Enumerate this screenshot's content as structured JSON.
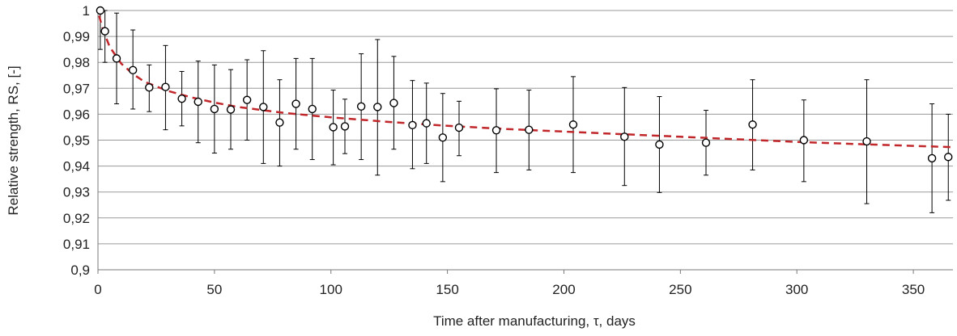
{
  "chart_data": {
    "type": "scatter",
    "title": "",
    "xlabel": "Time after manufacturing, τ, days",
    "ylabel": "Relative strength, RS, [-]",
    "xlim": [
      0,
      367
    ],
    "ylim": [
      0.9,
      1.0
    ],
    "x_ticks": [
      0,
      50,
      100,
      150,
      200,
      250,
      300,
      350
    ],
    "x_tick_labels": [
      "0",
      "50",
      "100",
      "150",
      "200",
      "250",
      "300",
      "350"
    ],
    "y_ticks": [
      0.9,
      0.91,
      0.92,
      0.93,
      0.94,
      0.95,
      0.96,
      0.97,
      0.98,
      0.99,
      1.0
    ],
    "y_tick_labels": [
      "0,9",
      "0,91",
      "0,92",
      "0,93",
      "0,94",
      "0,95",
      "0,96",
      "0,97",
      "0,98",
      "0,99",
      "1"
    ],
    "grid": "horizontal",
    "marker_color": "#000000",
    "errorbar_color": "#000000",
    "trend_color": "#c0262a",
    "series": [
      {
        "x": [
          1,
          3,
          8,
          15,
          22,
          29,
          36,
          43,
          50,
          57,
          64,
          71,
          78,
          85,
          92,
          101,
          106,
          113,
          120,
          127,
          135,
          141,
          148,
          155,
          171,
          185,
          204,
          226,
          241,
          261,
          281,
          303,
          330,
          358,
          365
        ],
        "y": [
          1.0,
          0.992,
          0.9815,
          0.977,
          0.9703,
          0.9705,
          0.966,
          0.9648,
          0.962,
          0.9618,
          0.9655,
          0.9628,
          0.9568,
          0.964,
          0.962,
          0.955,
          0.9553,
          0.963,
          0.9628,
          0.9643,
          0.9558,
          0.9565,
          0.951,
          0.9548,
          0.9538,
          0.954,
          0.956,
          0.9513,
          0.9483,
          0.949,
          0.956,
          0.95,
          0.9495,
          0.943,
          0.9435
        ],
        "y_err_low": [
          0.985,
          0.98,
          0.964,
          0.962,
          0.961,
          0.954,
          0.9555,
          0.949,
          0.945,
          0.9465,
          0.95,
          0.941,
          0.94,
          0.9465,
          0.9425,
          0.9405,
          0.9448,
          0.9425,
          0.9365,
          0.9465,
          0.939,
          0.941,
          0.934,
          0.944,
          0.9375,
          0.9385,
          0.9375,
          0.9325,
          0.9298,
          0.9365,
          0.9385,
          0.934,
          0.9255,
          0.922,
          0.9268
        ],
        "y_err_high": [
          1.0,
          1.0,
          0.999,
          0.9925,
          0.979,
          0.9865,
          0.9765,
          0.9805,
          0.979,
          0.9772,
          0.981,
          0.9845,
          0.9733,
          0.9815,
          0.9815,
          0.9693,
          0.9658,
          0.9833,
          0.9888,
          0.9823,
          0.973,
          0.972,
          0.968,
          0.965,
          0.9698,
          0.9693,
          0.9745,
          0.9703,
          0.9668,
          0.9615,
          0.9733,
          0.9655,
          0.9733,
          0.964,
          0.96
        ]
      }
    ],
    "trend": {
      "style": "dashed",
      "x": [
        0.5,
        2,
        5,
        10,
        15,
        20,
        30,
        40,
        50,
        60,
        80,
        100,
        125,
        150,
        175,
        200,
        225,
        250,
        275,
        300,
        325,
        350,
        367
      ],
      "y": [
        0.998,
        0.993,
        0.986,
        0.9795,
        0.9755,
        0.9725,
        0.969,
        0.9665,
        0.9645,
        0.9628,
        0.9605,
        0.9588,
        0.957,
        0.9555,
        0.9543,
        0.9533,
        0.9523,
        0.9513,
        0.9503,
        0.9493,
        0.9485,
        0.9478,
        0.9473
      ]
    }
  }
}
